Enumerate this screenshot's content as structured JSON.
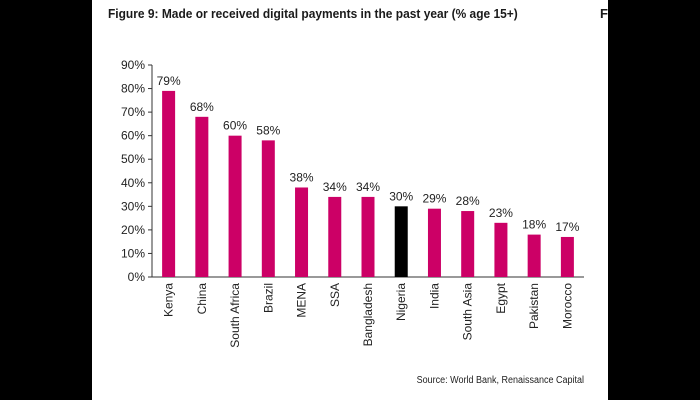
{
  "figure": {
    "title": "Figure 9: Made or received digital payments in the past year (% age 15+)",
    "title_fragment": "F",
    "source": "Source: World Bank, Renaissance Capital"
  },
  "chart_data": {
    "type": "bar",
    "title": "Figure 9: Made or received digital payments in the past year (% age 15+)",
    "xlabel": "",
    "ylabel": "",
    "ylim": [
      0,
      90
    ],
    "yticks": [
      "0%",
      "10%",
      "20%",
      "30%",
      "40%",
      "50%",
      "60%",
      "70%",
      "80%",
      "90%"
    ],
    "categories": [
      "Kenya",
      "China",
      "South Africa",
      "Brazil",
      "MENA",
      "SSA",
      "Bangladesh",
      "Nigeria",
      "India",
      "South Asia",
      "Egypt",
      "Pakistan",
      "Morocco"
    ],
    "values": [
      79,
      68,
      60,
      58,
      38,
      34,
      34,
      30,
      29,
      28,
      23,
      18,
      17
    ],
    "data_labels": [
      "79%",
      "68%",
      "60%",
      "58%",
      "38%",
      "34%",
      "34%",
      "30%",
      "29%",
      "28%",
      "23%",
      "18%",
      "17%"
    ],
    "bar_color": "#cc0066",
    "highlight_color": "#000000",
    "highlight_category": "Nigeria",
    "grid": false,
    "legend": "none"
  }
}
